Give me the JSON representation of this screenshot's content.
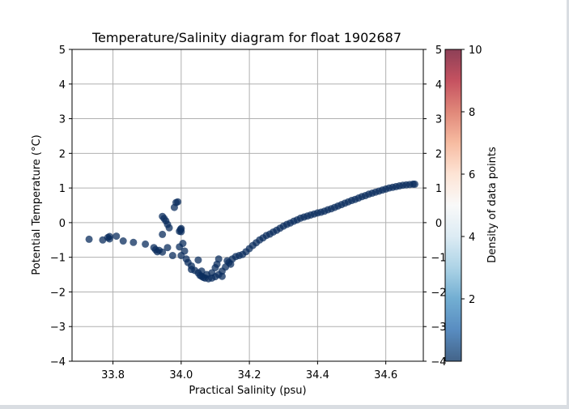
{
  "chart_data": {
    "type": "scatter",
    "title": "Temperature/Salinity diagram for float 1902687",
    "xlabel": "Practical Salinity (psu)",
    "ylabel": "Potential Temperature (°C)",
    "xlim": [
      33.68,
      34.71
    ],
    "ylim": [
      -4,
      5
    ],
    "xticks": [
      33.8,
      34.0,
      34.2,
      34.4,
      34.6
    ],
    "xtick_labels": [
      "33.8",
      "34.0",
      "34.2",
      "34.4",
      "34.6"
    ],
    "yticks": [
      -4,
      -3,
      -2,
      -1,
      0,
      1,
      2,
      3,
      4,
      5
    ],
    "ytick_labels": [
      "−4",
      "−3",
      "−2",
      "−1",
      "0",
      "1",
      "2",
      "3",
      "4",
      "5"
    ],
    "grid": true,
    "colorbar": {
      "label": "Density of data points",
      "range": [
        0,
        10
      ],
      "ticks": [
        2,
        4,
        6,
        8,
        10
      ],
      "tick_labels": [
        "2",
        "4",
        "6",
        "8",
        "10"
      ],
      "colormap": [
        "#053061",
        "#2166ac",
        "#4393c3",
        "#92c5de",
        "#d1e5f0",
        "#f7f7f7",
        "#fddbc7",
        "#f4a582",
        "#d6604d",
        "#b2182b",
        "#67001f"
      ]
    },
    "marker_color": "#0b2e5e",
    "points": [
      [
        33.73,
        -0.48
      ],
      [
        33.77,
        -0.5
      ],
      [
        33.785,
        -0.43
      ],
      [
        33.79,
        -0.4
      ],
      [
        33.79,
        -0.47
      ],
      [
        33.81,
        -0.39
      ],
      [
        33.83,
        -0.53
      ],
      [
        33.86,
        -0.57
      ],
      [
        33.895,
        -0.62
      ],
      [
        33.92,
        -0.72
      ],
      [
        33.925,
        -0.78
      ],
      [
        33.93,
        -0.84
      ],
      [
        33.935,
        -0.8
      ],
      [
        33.945,
        -0.85
      ],
      [
        33.96,
        -0.72
      ],
      [
        33.945,
        -0.34
      ],
      [
        33.975,
        -0.95
      ],
      [
        33.98,
        0.44
      ],
      [
        33.985,
        0.58
      ],
      [
        33.99,
        0.6
      ],
      [
        33.995,
        -0.25
      ],
      [
        33.998,
        -0.2
      ],
      [
        34.0,
        -0.26
      ],
      [
        34.0,
        -0.17
      ],
      [
        33.995,
        -0.7
      ],
      [
        34.005,
        -0.6
      ],
      [
        33.945,
        0.18
      ],
      [
        33.95,
        0.12
      ],
      [
        33.955,
        0.05
      ],
      [
        33.96,
        -0.05
      ],
      [
        33.965,
        -0.15
      ],
      [
        34.01,
        -0.82
      ],
      [
        34.015,
        -1.05
      ],
      [
        34.02,
        -1.15
      ],
      [
        34.03,
        -1.25
      ],
      [
        34.04,
        -1.38
      ],
      [
        34.05,
        -1.45
      ],
      [
        34.055,
        -1.52
      ],
      [
        34.06,
        -1.55
      ],
      [
        34.065,
        -1.58
      ],
      [
        34.07,
        -1.6
      ],
      [
        34.08,
        -1.62
      ],
      [
        34.09,
        -1.6
      ],
      [
        34.1,
        -1.56
      ],
      [
        34.11,
        -1.5
      ],
      [
        34.12,
        -1.4
      ],
      [
        34.13,
        -1.28
      ],
      [
        34.14,
        -1.15
      ],
      [
        34.15,
        -1.05
      ],
      [
        34.16,
        -0.98
      ],
      [
        34.17,
        -0.95
      ],
      [
        34.18,
        -0.92
      ],
      [
        34.19,
        -0.84
      ],
      [
        34.2,
        -0.75
      ],
      [
        34.21,
        -0.66
      ],
      [
        34.22,
        -0.58
      ],
      [
        34.23,
        -0.5
      ],
      [
        34.24,
        -0.44
      ],
      [
        34.25,
        -0.37
      ],
      [
        34.26,
        -0.33
      ],
      [
        34.27,
        -0.27
      ],
      [
        34.28,
        -0.22
      ],
      [
        34.29,
        -0.16
      ],
      [
        34.3,
        -0.1
      ],
      [
        34.31,
        -0.05
      ],
      [
        34.32,
        -0.01
      ],
      [
        34.33,
        0.04
      ],
      [
        34.34,
        0.08
      ],
      [
        34.35,
        0.13
      ],
      [
        34.36,
        0.16
      ],
      [
        34.37,
        0.19
      ],
      [
        34.38,
        0.22
      ],
      [
        34.39,
        0.25
      ],
      [
        34.4,
        0.28
      ],
      [
        34.41,
        0.3
      ],
      [
        34.42,
        0.33
      ],
      [
        34.43,
        0.37
      ],
      [
        34.44,
        0.4
      ],
      [
        34.45,
        0.44
      ],
      [
        34.46,
        0.48
      ],
      [
        34.47,
        0.52
      ],
      [
        34.48,
        0.56
      ],
      [
        34.49,
        0.6
      ],
      [
        34.5,
        0.64
      ],
      [
        34.51,
        0.67
      ],
      [
        34.52,
        0.71
      ],
      [
        34.53,
        0.75
      ],
      [
        34.54,
        0.78
      ],
      [
        34.55,
        0.82
      ],
      [
        34.56,
        0.85
      ],
      [
        34.57,
        0.88
      ],
      [
        34.58,
        0.91
      ],
      [
        34.59,
        0.94
      ],
      [
        34.6,
        0.97
      ],
      [
        34.61,
        1.0
      ],
      [
        34.62,
        1.02
      ],
      [
        34.63,
        1.04
      ],
      [
        34.64,
        1.06
      ],
      [
        34.65,
        1.08
      ],
      [
        34.66,
        1.09
      ],
      [
        34.67,
        1.1
      ],
      [
        34.68,
        1.11
      ],
      [
        34.685,
        1.11
      ],
      [
        34.105,
        -1.2
      ],
      [
        34.11,
        -1.05
      ],
      [
        34.1,
        -1.3
      ],
      [
        34.09,
        -1.45
      ],
      [
        34.075,
        -1.5
      ],
      [
        34.05,
        -1.08
      ],
      [
        34.135,
        -1.1
      ],
      [
        34.145,
        -1.2
      ],
      [
        34.03,
        -1.35
      ],
      [
        34.06,
        -1.4
      ],
      [
        34.12,
        -1.55
      ],
      [
        34.0,
        -0.95
      ]
    ]
  }
}
